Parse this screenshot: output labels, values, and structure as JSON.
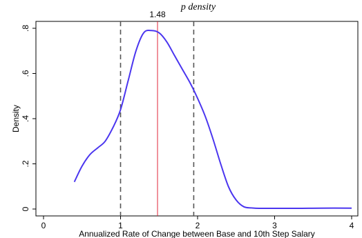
{
  "chart_data": {
    "type": "line",
    "title": "p density",
    "xlabel": "Annualized Rate of Change between Base and 10th Step Salary",
    "ylabel": "Density",
    "xlim": [
      0,
      4
    ],
    "ylim": [
      0,
      0.8
    ],
    "x_ticks": [
      {
        "value": 0,
        "label": "0"
      },
      {
        "value": 1,
        "label": "1"
      },
      {
        "value": 2,
        "label": "2"
      },
      {
        "value": 3,
        "label": "3"
      },
      {
        "value": 4,
        "label": "4"
      }
    ],
    "y_ticks": [
      {
        "value": 0,
        "label": "0"
      },
      {
        "value": 0.2,
        "label": ".2"
      },
      {
        "value": 0.4,
        "label": ".4"
      },
      {
        "value": 0.6,
        "label": ".6"
      },
      {
        "value": 0.8,
        "label": ".8"
      }
    ],
    "grid": false,
    "series": [
      {
        "color": "#4a35ef",
        "x": [
          0.4,
          0.5,
          0.6,
          0.7,
          0.8,
          0.9,
          1.0,
          1.1,
          1.2,
          1.3,
          1.4,
          1.5,
          1.6,
          1.7,
          1.8,
          1.9,
          2.0,
          2.1,
          2.2,
          2.3,
          2.4,
          2.5,
          2.6,
          2.7,
          2.8,
          3.0,
          3.3,
          3.6,
          4.0
        ],
        "y": [
          0.12,
          0.19,
          0.24,
          0.27,
          0.3,
          0.36,
          0.44,
          0.57,
          0.7,
          0.78,
          0.79,
          0.78,
          0.74,
          0.68,
          0.62,
          0.56,
          0.49,
          0.41,
          0.31,
          0.2,
          0.1,
          0.04,
          0.01,
          0.005,
          0.003,
          0.003,
          0.003,
          0.004,
          0.004
        ]
      }
    ],
    "vlines": [
      {
        "x": 1.0,
        "style": "dashed",
        "color": "#555555"
      },
      {
        "x": 1.95,
        "style": "dashed",
        "color": "#555555"
      },
      {
        "x": 1.48,
        "style": "solid",
        "color": "#e0243a",
        "label": "1.48"
      }
    ]
  }
}
